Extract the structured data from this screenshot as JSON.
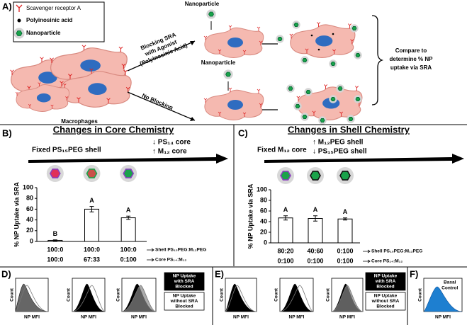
{
  "panel_a": {
    "label": "A)",
    "legend": [
      "Scavenger receptor A",
      "Polyinosinic acid",
      "Nanoparticle"
    ],
    "nanoparticle_labels": [
      "Nanoparticle",
      "Nanoparticle"
    ],
    "blocking": [
      "Blocking SRA",
      "with Agonist",
      "(Polyinosinic Acid)"
    ],
    "no_blocking": "No Blocking",
    "macrophages": "Macrophages",
    "compare": [
      "Compare to",
      "determine % NP",
      "uptake via SRA"
    ]
  },
  "chart_data": [
    {
      "type": "bar",
      "panel_label": "B)",
      "title": "Changes in Core Chemistry",
      "arrow_left": "Fixed PS₁₅PEG shell",
      "arrow_notes": [
        "↓ PS₁₄ core",
        "↑ M₁₂ core"
      ],
      "y_label": "% NP Uptake via SRA",
      "categories": [
        [
          "100:0",
          "100:0"
        ],
        [
          "100:0",
          "67:33"
        ],
        [
          "100:0",
          "0:100"
        ]
      ],
      "row_labels": [
        "Shell PS₁₅PEG:M₁₂PEG",
        "Core PS₁₄:M₁₂"
      ],
      "values": [
        2,
        60,
        44
      ],
      "errors": [
        1,
        5,
        3
      ],
      "group_letters": [
        "B",
        "A",
        "A"
      ],
      "ylim": [
        0,
        100
      ],
      "yticks": [
        0,
        20,
        40,
        60,
        80,
        100
      ],
      "color": "#ffffff"
    },
    {
      "type": "bar",
      "panel_label": "C)",
      "title": "Changes in Shell Chemistry",
      "arrow_left": "Fixed M₁₂ core",
      "arrow_notes": [
        "↑ M₁₂PEG shell",
        "↓ PS₁₅PEG shell"
      ],
      "y_label": "% NP Uptake via SRA",
      "categories": [
        [
          "80:20",
          "0:100"
        ],
        [
          "40:60",
          "0:100"
        ],
        [
          "0:100",
          "0:100"
        ]
      ],
      "row_labels": [
        "Shell PS₁₅PEG:M₁₂PEG",
        "Core PS₁₄:M₁₂"
      ],
      "values": [
        47,
        46,
        45
      ],
      "errors": [
        4,
        5,
        2
      ],
      "group_letters": [
        "A",
        "A",
        "A"
      ],
      "ylim": [
        0,
        100
      ],
      "yticks": [
        0,
        20,
        40,
        60,
        80,
        100
      ],
      "color": "#ffffff"
    }
  ],
  "flow_panels": [
    {
      "label": "D)",
      "plots": [
        {
          "y_label": "Count",
          "x_label": "NP MFI"
        },
        {
          "y_label": "Count",
          "x_label": "NP MFI"
        },
        {
          "y_label": "Count",
          "x_label": "NP MFI"
        }
      ],
      "legend": [
        [
          "NP Uptake",
          "with SRA",
          "Blocked"
        ],
        [
          "NP Uptake",
          "without SRA",
          "Blocked"
        ]
      ]
    },
    {
      "label": "E)",
      "plots": [
        {
          "y_label": "Count",
          "x_label": "NP MFI"
        },
        {
          "y_label": "Count",
          "x_label": "NP MFI"
        },
        {
          "y_label": "Count",
          "x_label": "NP MFI"
        }
      ],
      "legend": [
        [
          "NP Uptake",
          "with SRA",
          "Blocked"
        ],
        [
          "NP Uptake",
          "without SRA",
          "Blocked"
        ]
      ]
    },
    {
      "label": "F)",
      "plots": [
        {
          "y_label": "Count",
          "x_label": "NP MFI",
          "note": [
            "Basal",
            "Control"
          ]
        }
      ]
    }
  ]
}
